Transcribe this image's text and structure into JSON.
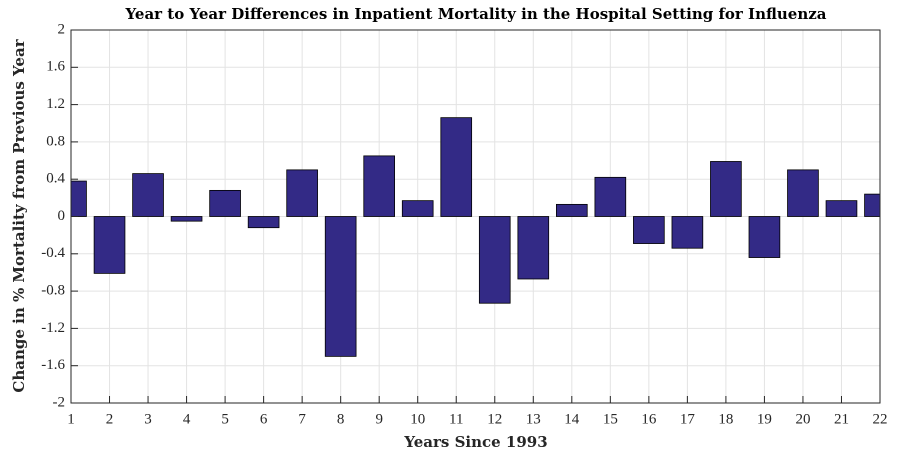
{
  "chart_data": {
    "type": "bar",
    "title": "Year to Year Differences in Inpatient Mortality in the Hospital Setting for Influenza",
    "xlabel": "Years Since 1993",
    "ylabel": "Change in % Mortality from Previous Year",
    "x": [
      1,
      2,
      3,
      4,
      5,
      6,
      7,
      8,
      9,
      10,
      11,
      12,
      13,
      14,
      15,
      16,
      17,
      18,
      19,
      20,
      21,
      22
    ],
    "values": [
      0.38,
      -0.61,
      0.46,
      -0.05,
      0.28,
      -0.12,
      0.5,
      -1.5,
      0.65,
      0.17,
      1.06,
      -0.93,
      -0.67,
      0.13,
      0.42,
      -0.29,
      -0.34,
      0.59,
      -0.44,
      0.5,
      0.17,
      0.24
    ],
    "color": "#332a86",
    "xlim": [
      1,
      22
    ],
    "xticks": [
      1,
      2,
      3,
      4,
      5,
      6,
      7,
      8,
      9,
      10,
      11,
      12,
      13,
      14,
      15,
      16,
      17,
      18,
      19,
      20,
      21,
      22
    ],
    "ylim": [
      -2,
      2
    ],
    "yticks": [
      -2,
      -1.6,
      -1.2,
      -0.8,
      -0.4,
      0,
      0.4,
      0.8,
      1.2,
      1.6,
      2
    ],
    "grid": true
  }
}
